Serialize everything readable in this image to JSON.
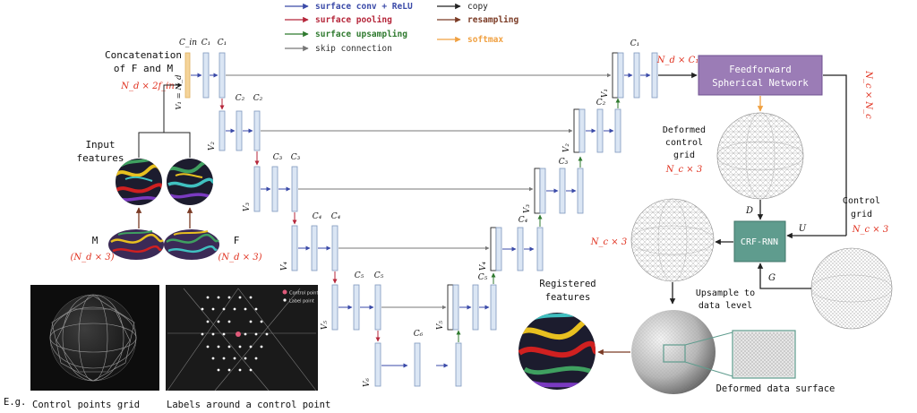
{
  "legend": {
    "items": [
      {
        "label": "surface conv + ReLU",
        "color": "#3a4aa8"
      },
      {
        "label": "surface pooling",
        "color": "#b5263a"
      },
      {
        "label": "surface upsampling",
        "color": "#2f7a2f"
      },
      {
        "label": "skip connection",
        "color": "#777777"
      },
      {
        "label": "copy",
        "color": "#222222"
      },
      {
        "label": "resampling",
        "color": "#7a3a24"
      },
      {
        "label": "softmax",
        "color": "#f0a040"
      }
    ]
  },
  "labels": {
    "concat_line1": "Concatenation",
    "concat_line2": "of F and M",
    "nd_2fin": "N_d × 2f_in",
    "input_features_line1": "Input",
    "input_features_line2": "features",
    "M": "M",
    "F": "F",
    "nd3_m": "(N_d × 3)",
    "nd3_f": "(N_d × 3)",
    "cin": "C_in",
    "c1": "C₁",
    "c2": "C₂",
    "c3": "C₃",
    "c4": "C₄",
    "c5": "C₅",
    "c6": "C₆",
    "v1_eq": "V₁ = N_d",
    "v1": "V₁",
    "v2": "V₂",
    "v3": "V₃",
    "v4": "V₄",
    "v5": "V₅",
    "v6": "V₆",
    "nd_c1": "N_d × C₁",
    "ffn_line1": "Feedforward",
    "ffn_line2": "Spherical Network",
    "nc_nc": "N_c × N_c",
    "deformed_grid_line1": "Deformed",
    "deformed_grid_line2": "control",
    "deformed_grid_line3": "grid",
    "nc3_a": "N_c × 3",
    "nc3_b": "N_c × 3",
    "nc3_c": "N_c × 3",
    "control_grid_line1": "Control",
    "control_grid_line2": "grid",
    "crf": "CRF-RNN",
    "D": "D",
    "U": "U",
    "G": "G",
    "upsample_line1": "Upsample to",
    "upsample_line2": "data level",
    "registered_line1": "Registered",
    "registered_line2": "features",
    "deformed_surface": "Deformed data surface",
    "eg": "E.g.",
    "caption_grid": "Control points grid",
    "caption_labels": "Labels around a control point",
    "inset_control_point": "Control point",
    "inset_label_point": "Label point"
  },
  "colors": {
    "conv": "#3a4aa8",
    "pool": "#b5263a",
    "up": "#2f7a2f",
    "skip": "#777777",
    "copy": "#222222",
    "resample": "#7a3a24",
    "softmax": "#f0a040",
    "box_fill": "#dbe6f4",
    "box_stroke": "#7f98be",
    "orange_fill": "#f5d49a",
    "ffn_fill": "#9b7cb6",
    "crf_fill": "#5f9c8e",
    "red_text": "#e0301e"
  }
}
